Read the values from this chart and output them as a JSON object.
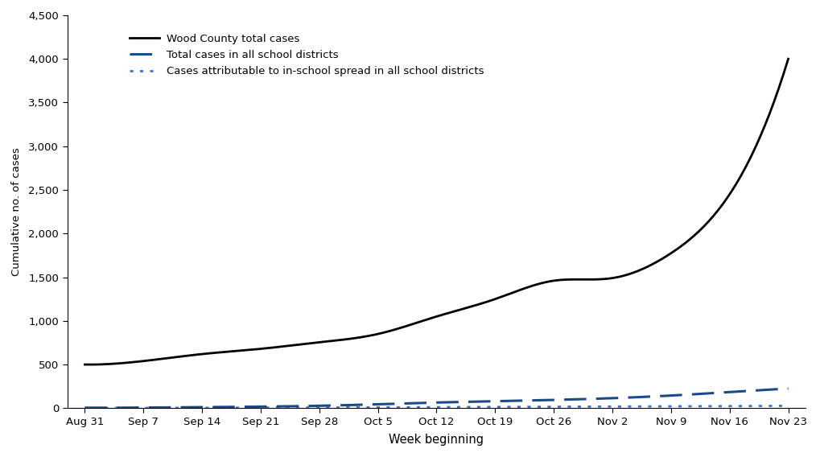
{
  "tick_labels": [
    "Aug 31",
    "Sep 7",
    "Sep 14",
    "Sep 21",
    "Sep 28",
    "Oct 5",
    "Oct 12",
    "Oct 19",
    "Oct 26",
    "Nov 2",
    "Nov 9",
    "Nov 16",
    "Nov 23"
  ],
  "wood_x": [
    0,
    1,
    2,
    3,
    4,
    5,
    6,
    7,
    8,
    9,
    10,
    11,
    12
  ],
  "wood_y": [
    500,
    540,
    620,
    680,
    755,
    850,
    1050,
    1250,
    1460,
    1490,
    1775,
    2450,
    4000
  ],
  "school_x": [
    0,
    1,
    2,
    3,
    4,
    5,
    6,
    7,
    8,
    9,
    10,
    11,
    12
  ],
  "school_y": [
    5,
    7,
    12,
    18,
    28,
    45,
    65,
    80,
    95,
    115,
    145,
    185,
    225
  ],
  "inschool_x": [
    0,
    1,
    2,
    3,
    4,
    5,
    6,
    7,
    8,
    9,
    10,
    11,
    12
  ],
  "inschool_y": [
    1,
    2,
    3,
    5,
    7,
    9,
    12,
    15,
    17,
    19,
    21,
    24,
    27
  ],
  "ylim": [
    0,
    4500
  ],
  "yticks": [
    0,
    500,
    1000,
    1500,
    2000,
    2500,
    3000,
    3500,
    4000,
    4500
  ],
  "ylabel": "Cumulative no. of cases",
  "xlabel": "Week beginning",
  "line1_color": "#000000",
  "line2_color": "#1a4a8a",
  "line3_color": "#4472c4",
  "background_color": "#ffffff",
  "legend_labels": [
    "Wood County total cases",
    "Total cases in all school districts",
    "Cases attributable to in-school spread in all school districts"
  ]
}
